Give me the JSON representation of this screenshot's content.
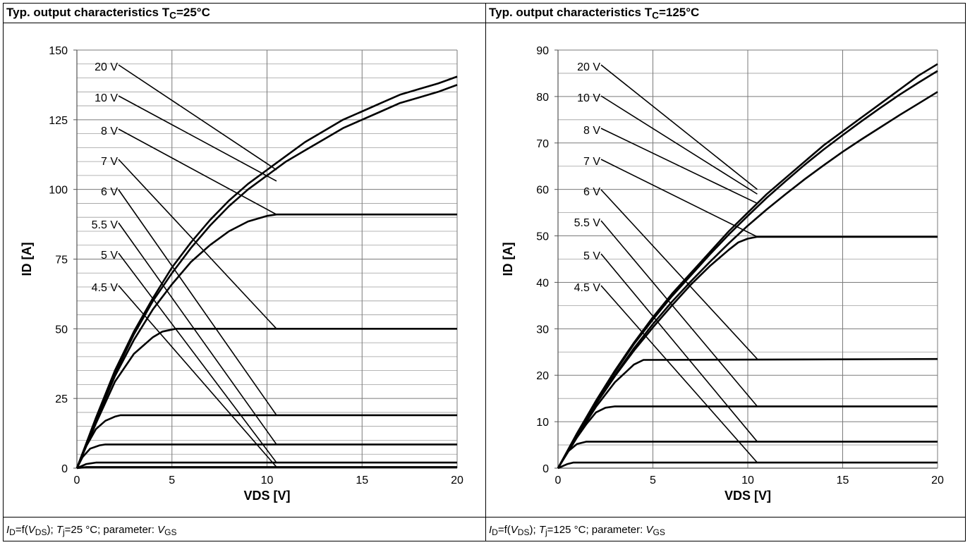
{
  "panels": [
    {
      "title": "Typ. output characteristics T",
      "title_sub": "C",
      "title_tail": "=25°C",
      "footer": {
        "id": "I",
        "id_sub": "D",
        "eq": "=f(",
        "v": "V",
        "v_sub": "DS",
        "close": ");",
        "t": "T",
        "t_sub": "j",
        "t_val": "=25 °C; parameter:",
        "p": "V",
        "p_sub": "GS"
      }
    },
    {
      "title": "Typ. output characteristics T",
      "title_sub": "C",
      "title_tail": "=125°C",
      "footer": {
        "id": "I",
        "id_sub": "D",
        "eq": "=f(",
        "v": "V",
        "v_sub": "DS",
        "close": ");",
        "t": "T",
        "t_sub": "j",
        "t_val": "=125 °C; parameter:",
        "p": "V",
        "p_sub": "GS"
      }
    }
  ],
  "chart_data": [
    {
      "type": "line",
      "xlabel": "VDS [V]",
      "ylabel": "ID [A]",
      "xlim": [
        0,
        20
      ],
      "ylim": [
        0,
        150
      ],
      "xticks": [
        0,
        5,
        10,
        15,
        20
      ],
      "yticks": [
        0,
        25,
        50,
        75,
        100,
        125,
        150
      ],
      "grid": true,
      "series": [
        {
          "name": "20 V",
          "x": [
            0,
            1,
            2,
            3,
            4,
            5,
            6,
            7,
            8,
            9,
            10,
            11,
            12,
            13,
            14,
            15,
            16,
            17,
            18,
            19,
            20
          ],
          "y": [
            0,
            18,
            35,
            49,
            61,
            72,
            81,
            89,
            96,
            102,
            107,
            112,
            117,
            121,
            125,
            128,
            131,
            134,
            136,
            138,
            140.5
          ]
        },
        {
          "name": "10 V",
          "x": [
            0,
            1,
            2,
            3,
            4,
            5,
            6,
            7,
            8,
            9,
            10,
            11,
            12,
            13,
            14,
            15,
            16,
            17,
            18,
            19,
            20
          ],
          "y": [
            0,
            17.5,
            34,
            48,
            60,
            70,
            79,
            87,
            94,
            100,
            105,
            110,
            114,
            118,
            122,
            125,
            128,
            131,
            133,
            135,
            137.5
          ]
        },
        {
          "name": "8 V",
          "x": [
            0,
            1,
            2,
            3,
            4,
            5,
            6,
            7,
            8,
            9,
            10,
            10.5,
            11,
            20
          ],
          "y": [
            0,
            17,
            33,
            46,
            57,
            66,
            74,
            80,
            85,
            88.5,
            90.5,
            91,
            91,
            91
          ]
        },
        {
          "name": "7 V",
          "x": [
            0,
            1,
            2,
            3,
            4,
            4.5,
            5.2,
            6,
            20
          ],
          "y": [
            0,
            16,
            31,
            41,
            47,
            49,
            50,
            50,
            50
          ]
        },
        {
          "name": "6 V",
          "x": [
            0,
            0.5,
            1,
            1.5,
            2,
            2.3,
            20
          ],
          "y": [
            0,
            8,
            14,
            17,
            18.5,
            19,
            19
          ]
        },
        {
          "name": "5.5 V",
          "x": [
            0,
            0.3,
            0.7,
            1.2,
            1.5,
            20
          ],
          "y": [
            0,
            4,
            7,
            8.2,
            8.5,
            8.5
          ]
        },
        {
          "name": "5 V",
          "x": [
            0,
            0.5,
            1,
            20
          ],
          "y": [
            0,
            1.5,
            2,
            2
          ]
        },
        {
          "name": "4.5 V",
          "x": [
            0,
            0.5,
            20
          ],
          "y": [
            0,
            0.4,
            0.4
          ]
        }
      ]
    },
    {
      "type": "line",
      "xlabel": "VDS [V]",
      "ylabel": "ID [A]",
      "xlim": [
        0,
        20
      ],
      "ylim": [
        0,
        90
      ],
      "xticks": [
        0,
        5,
        10,
        15,
        20
      ],
      "yticks": [
        0,
        10,
        20,
        30,
        40,
        50,
        60,
        70,
        80,
        90
      ],
      "grid": true,
      "series": [
        {
          "name": "20 V",
          "x": [
            0,
            1,
            2,
            3,
            4,
            5,
            6,
            7,
            8,
            9,
            10,
            11,
            12,
            13,
            14,
            15,
            16,
            17,
            18,
            19,
            20
          ],
          "y": [
            0,
            7.5,
            14.5,
            21,
            27,
            32.5,
            37.5,
            42,
            46.5,
            51,
            55,
            59,
            62.5,
            66,
            69.5,
            72.5,
            75.5,
            78.5,
            81.5,
            84.5,
            87
          ]
        },
        {
          "name": "10 V",
          "x": [
            0,
            1,
            2,
            3,
            4,
            5,
            6,
            7,
            8,
            9,
            10,
            11,
            12,
            13,
            14,
            15,
            16,
            17,
            18,
            19,
            20
          ],
          "y": [
            0,
            7.4,
            14.3,
            20.7,
            26.7,
            32,
            37,
            41.5,
            46,
            50.3,
            54.3,
            58.2,
            61.8,
            65.3,
            68.6,
            71.7,
            74.7,
            77.6,
            80.4,
            83,
            85.5
          ]
        },
        {
          "name": "8 V",
          "x": [
            0,
            1,
            2,
            3,
            4,
            5,
            6,
            7,
            8,
            9,
            10,
            11,
            12,
            13,
            14,
            15,
            16,
            17,
            18,
            19,
            20
          ],
          "y": [
            0,
            7.2,
            14,
            20,
            25.8,
            31,
            35.8,
            40.2,
            44.4,
            48.4,
            52.2,
            55.7,
            59,
            62.2,
            65.2,
            68.1,
            70.8,
            73.4,
            76,
            78.5,
            81
          ]
        },
        {
          "name": "7 V",
          "x": [
            0,
            1,
            2,
            3,
            4,
            5,
            6,
            7,
            8,
            9,
            9.5,
            10,
            10.5,
            20
          ],
          "y": [
            0,
            7,
            13.8,
            19.8,
            25.3,
            30.3,
            35,
            39.5,
            43.5,
            47,
            48.6,
            49.4,
            49.8,
            49.8
          ]
        },
        {
          "name": "6 V",
          "x": [
            0,
            1,
            2,
            3,
            4,
            4.5,
            20
          ],
          "y": [
            0,
            6.8,
            13.2,
            18.5,
            22.3,
            23.3,
            23.5
          ]
        },
        {
          "name": "5.5 V",
          "x": [
            0,
            1,
            1.5,
            2,
            2.5,
            3,
            20
          ],
          "y": [
            0,
            6.6,
            9.5,
            12,
            13,
            13.3,
            13.3
          ]
        },
        {
          "name": "5 V",
          "x": [
            0,
            0.5,
            1,
            1.5,
            20
          ],
          "y": [
            0,
            3.5,
            5.2,
            5.7,
            5.7
          ]
        },
        {
          "name": "4.5 V",
          "x": [
            0,
            0.5,
            0.8,
            20
          ],
          "y": [
            0,
            0.9,
            1.2,
            1.2
          ]
        }
      ]
    }
  ]
}
